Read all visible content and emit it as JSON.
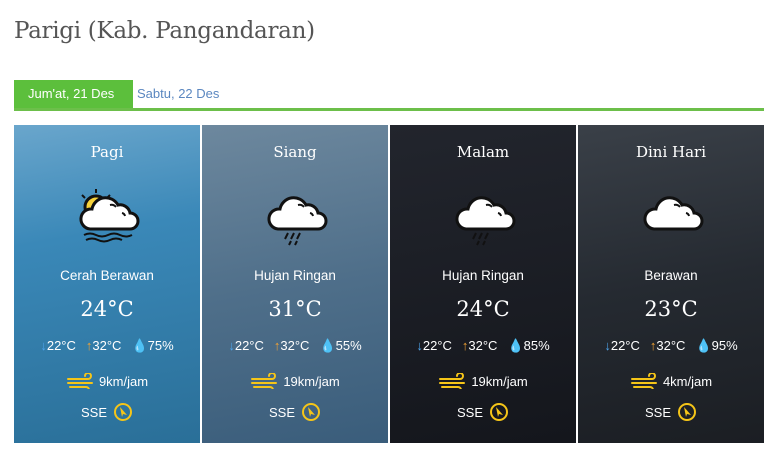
{
  "page_title": "Parigi (Kab. Pangandaran)",
  "tabs": [
    {
      "label": "Jum'at, 21 Des",
      "active": true
    },
    {
      "label": "Sabtu, 22 Des",
      "active": false
    }
  ],
  "colors": {
    "accent": "#5cbf3c",
    "tab_link": "#5b87c0",
    "min_arrow": "#4da3e8",
    "max_arrow": "#f3a333",
    "wind": "#f5c518"
  },
  "forecasts": [
    {
      "period": "Pagi",
      "icon": "partly-cloudy-icon",
      "condition": "Cerah Berawan",
      "temp": "24°C",
      "min": "22°C",
      "max": "32°C",
      "humidity": "75%",
      "wind_speed": "9km/jam",
      "wind_dir": "SSE"
    },
    {
      "period": "Siang",
      "icon": "light-rain-icon",
      "condition": "Hujan Ringan",
      "temp": "31°C",
      "min": "22°C",
      "max": "32°C",
      "humidity": "55%",
      "wind_speed": "19km/jam",
      "wind_dir": "SSE"
    },
    {
      "period": "Malam",
      "icon": "light-rain-icon",
      "condition": "Hujan Ringan",
      "temp": "24°C",
      "min": "22°C",
      "max": "32°C",
      "humidity": "85%",
      "wind_speed": "19km/jam",
      "wind_dir": "SSE"
    },
    {
      "period": "Dini Hari",
      "icon": "cloudy-icon",
      "condition": "Berawan",
      "temp": "23°C",
      "min": "22°C",
      "max": "32°C",
      "humidity": "95%",
      "wind_speed": "4km/jam",
      "wind_dir": "SSE"
    }
  ]
}
